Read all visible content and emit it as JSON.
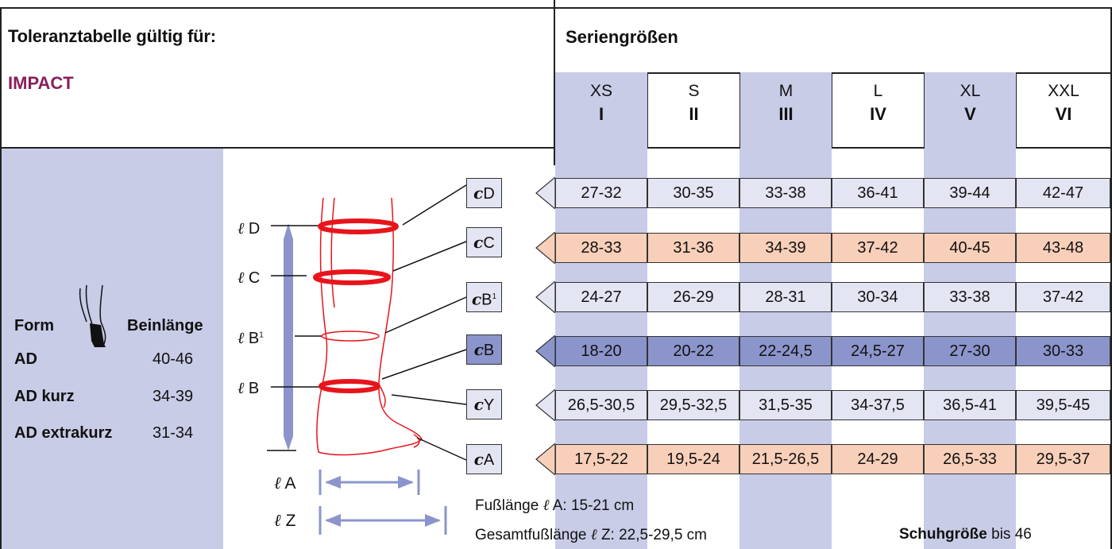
{
  "header": {
    "title": "Toleranztabelle gültig für:",
    "product": "IMPACT",
    "series_title": "Seriengrößen"
  },
  "sizes": [
    {
      "code": "XS",
      "roman": "I"
    },
    {
      "code": "S",
      "roman": "II"
    },
    {
      "code": "M",
      "roman": "III"
    },
    {
      "code": "L",
      "roman": "IV"
    },
    {
      "code": "XL",
      "roman": "V"
    },
    {
      "code": "XXL",
      "roman": "VI"
    }
  ],
  "form_table": {
    "form_label": "Form",
    "length_label": "Beinlänge",
    "rows": [
      {
        "form": "AD",
        "length": "40-46"
      },
      {
        "form": "AD kurz",
        "length": "34-39"
      },
      {
        "form": "AD extrakurz",
        "length": "31-34"
      }
    ]
  },
  "measure_rows": [
    {
      "symbol": "c",
      "label": "D",
      "sup": "",
      "values": [
        "27-32",
        "30-35",
        "33-38",
        "36-41",
        "39-44",
        "42-47"
      ],
      "color": "#e3e5f3"
    },
    {
      "symbol": "c",
      "label": "C",
      "sup": "",
      "values": [
        "28-33",
        "31-36",
        "34-39",
        "37-42",
        "40-45",
        "43-48"
      ],
      "color": "#f8cfb9"
    },
    {
      "symbol": "c",
      "label": "B",
      "sup": "1",
      "values": [
        "24-27",
        "26-29",
        "28-31",
        "30-34",
        "33-38",
        "37-42"
      ],
      "color": "#e3e5f3"
    },
    {
      "symbol": "c",
      "label": "B",
      "sup": "",
      "values": [
        "18-20",
        "20-22",
        "22-24,5",
        "24,5-27",
        "27-30",
        "30-33"
      ],
      "color": "#8b95cc"
    },
    {
      "symbol": "c",
      "label": "Y",
      "sup": "",
      "values": [
        "26,5-30,5",
        "29,5-32,5",
        "31,5-35",
        "34-37,5",
        "36,5-41",
        "39,5-45"
      ],
      "color": "#e3e5f3"
    },
    {
      "symbol": "c",
      "label": "A",
      "sup": "",
      "values": [
        "17,5-22",
        "19,5-24",
        "21,5-26,5",
        "24-29",
        "26,5-33",
        "29,5-37"
      ],
      "color": "#f8cfb9"
    }
  ],
  "length_labels": [
    {
      "symbol": "ℓ",
      "label": "D",
      "sup": ""
    },
    {
      "symbol": "ℓ",
      "label": "C",
      "sup": ""
    },
    {
      "symbol": "ℓ",
      "label": "B",
      "sup": "1"
    },
    {
      "symbol": "ℓ",
      "label": "B",
      "sup": ""
    },
    {
      "symbol": "ℓ",
      "label": "A",
      "sup": ""
    },
    {
      "symbol": "ℓ",
      "label": "Z",
      "sup": ""
    }
  ],
  "footer": {
    "foot_length_prefix": "Fußlänge",
    "foot_length_symbol": "ℓ",
    "foot_length_text": " A: 15-21 cm",
    "total_length_prefix": "Gesamtfußlänge",
    "total_length_symbol": "ℓ",
    "total_length_text": " Z:  22,5-29,5 cm",
    "shoe_label": "Schuhgröße",
    "shoe_text": " bis 46"
  },
  "colors": {
    "accent_purple": "#8a1f5c",
    "shade_blue": "#c9cce7",
    "row_light": "#e3e5f3",
    "row_peach": "#f8cfb9",
    "row_dark": "#8b95cc",
    "leg_red": "#e8141c",
    "bar_blue": "#8b95cc"
  }
}
